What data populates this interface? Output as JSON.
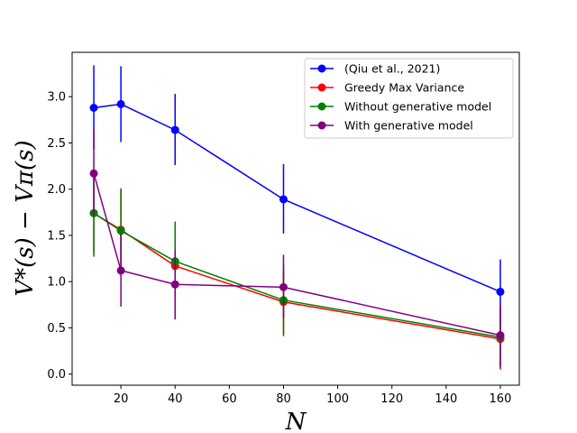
{
  "chart_data": {
    "type": "line",
    "xlabel": "N",
    "ylabel": "V*(s) − Vπ(s)",
    "xlim": [
      2,
      167
    ],
    "ylim": [
      -0.12,
      3.48
    ],
    "xticks": [
      20,
      40,
      60,
      80,
      100,
      120,
      140,
      160
    ],
    "yticks": [
      0.0,
      0.5,
      1.0,
      1.5,
      2.0,
      2.5,
      3.0
    ],
    "legend_position": "top-right",
    "grid": false,
    "series": [
      {
        "name": "(Qiu et al., 2021)",
        "color": "#0000ff",
        "x": [
          10,
          20,
          40,
          80,
          160
        ],
        "y": [
          2.88,
          2.92,
          2.64,
          1.89,
          0.89
        ],
        "err_low": [
          2.43,
          2.51,
          2.26,
          1.52,
          0.54
        ],
        "err_high": [
          3.34,
          3.33,
          3.03,
          2.27,
          1.24
        ]
      },
      {
        "name": "Greedy Max Variance",
        "color": "#ff0000",
        "x": [
          10,
          20,
          40,
          80,
          160
        ],
        "y": [
          1.74,
          1.56,
          1.17,
          0.78,
          0.38
        ],
        "err_low": [
          1.31,
          1.11,
          0.79,
          0.41,
          0.05
        ],
        "err_high": [
          2.17,
          1.99,
          1.57,
          1.12,
          0.71
        ]
      },
      {
        "name": "Without generative model",
        "color": "#008000",
        "x": [
          10,
          20,
          40,
          80,
          160
        ],
        "y": [
          1.74,
          1.55,
          1.22,
          0.8,
          0.4
        ],
        "err_low": [
          1.27,
          1.11,
          0.83,
          0.43,
          0.08
        ],
        "err_high": [
          2.18,
          2.01,
          1.65,
          1.19,
          0.72
        ]
      },
      {
        "name": "With generative model",
        "color": "#800080",
        "x": [
          10,
          20,
          40,
          80,
          160
        ],
        "y": [
          2.17,
          1.12,
          0.97,
          0.94,
          0.42
        ],
        "err_low": [
          1.71,
          0.73,
          0.59,
          0.61,
          0.07
        ],
        "err_high": [
          2.64,
          1.52,
          1.35,
          1.29,
          0.77
        ]
      }
    ]
  }
}
